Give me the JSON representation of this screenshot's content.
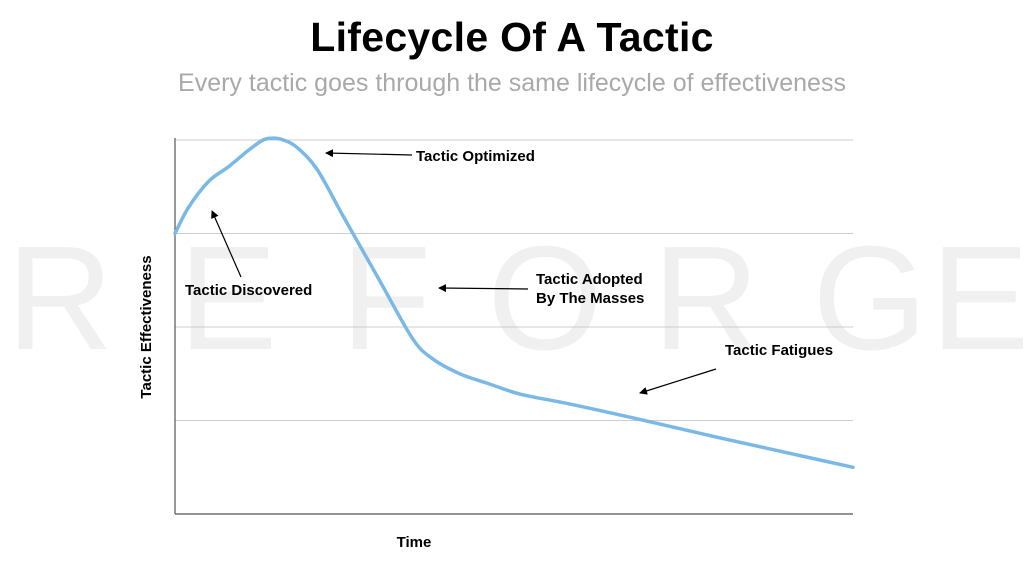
{
  "title": "Lifecycle Of A Tactic",
  "subtitle": "Every tactic goes through the same lifecycle of effectiveness",
  "watermark": "REFORGE",
  "colors": {
    "curve": "#7ab8e6",
    "axis": "#555555",
    "grid": "#cccccc",
    "subtitle": "#a9a9a9",
    "watermark": "#f0f0f0"
  },
  "chart_data": {
    "type": "line",
    "xlabel": "Time",
    "ylabel": "Tactic Effectiveness",
    "xlim": [
      0,
      100
    ],
    "ylim": [
      0,
      100
    ],
    "grid": "horizontal",
    "series": [
      {
        "x": [
          0,
          2,
          5,
          8,
          11,
          13,
          14.5,
          16,
          18,
          21,
          25,
          30,
          35,
          38,
          42,
          46,
          51,
          58,
          68,
          80,
          90,
          100
        ],
        "y": [
          75,
          82,
          89,
          93,
          97.5,
          100,
          100.5,
          100,
          98,
          92,
          79,
          63,
          47,
          41.5,
          37.5,
          35,
          32,
          29.5,
          25.5,
          20.5,
          16.5,
          12.5
        ]
      }
    ],
    "annotations": [
      {
        "text": "Tactic Optimized",
        "lines": [
          "Tactic Optimized"
        ]
      },
      {
        "text": "Tactic Discovered",
        "lines": [
          "Tactic Discovered"
        ]
      },
      {
        "text": "Tactic Adopted By The Masses",
        "lines": [
          "Tactic Adopted",
          "By The Masses"
        ]
      },
      {
        "text": "Tactic Fatigues",
        "lines": [
          "Tactic Fatigues"
        ]
      }
    ]
  }
}
